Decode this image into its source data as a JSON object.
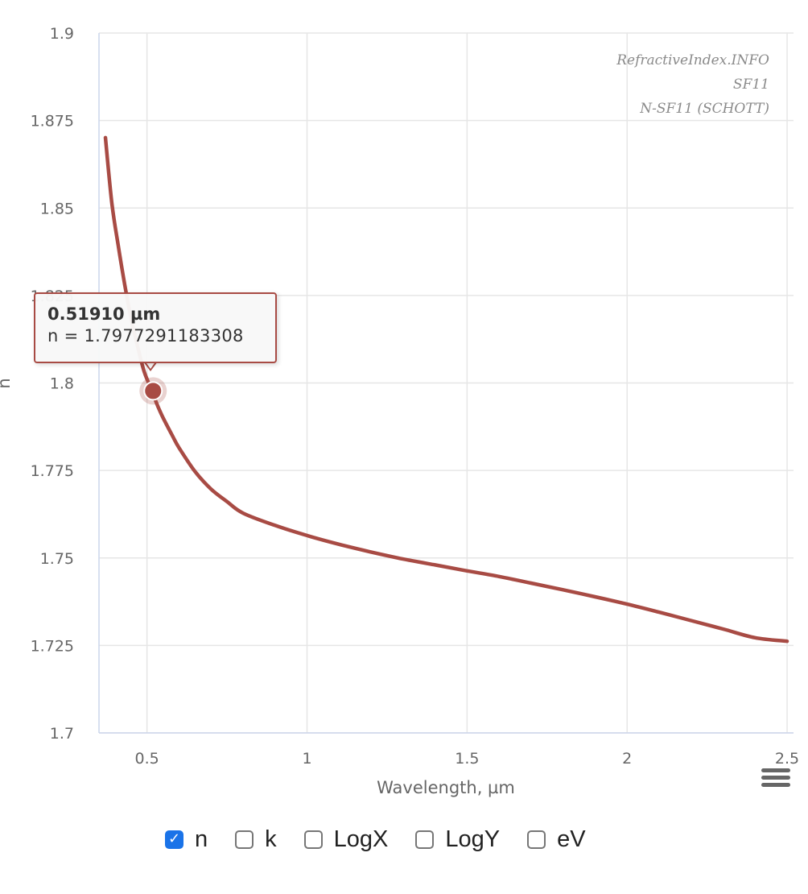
{
  "chart_data": {
    "type": "line",
    "credits": [
      "RefractiveIndex.INFO",
      "SF11",
      "N-SF11 (SCHOTT)"
    ],
    "xlabel": "Wavelength, µm",
    "ylabel": "n",
    "xlim": [
      0.35,
      2.52
    ],
    "ylim": [
      1.7,
      1.9
    ],
    "x_ticks": [
      0.5,
      1,
      1.5,
      2,
      2.5
    ],
    "x_tick_labels": [
      "0.5",
      "1",
      "1.5",
      "2",
      "2.5"
    ],
    "y_ticks": [
      1.7,
      1.725,
      1.75,
      1.775,
      1.8,
      1.825,
      1.85,
      1.875,
      1.9
    ],
    "y_tick_labels": [
      "1.7",
      "1.725",
      "1.75",
      "1.775",
      "1.8",
      "1.825",
      "1.85",
      "1.875",
      "1.9"
    ],
    "grid": true,
    "series": [
      {
        "name": "n",
        "color": "#a84b44",
        "x": [
          0.37,
          0.39,
          0.41,
          0.43,
          0.45,
          0.47,
          0.49,
          0.51,
          0.53,
          0.55,
          0.58,
          0.6,
          0.65,
          0.7,
          0.75,
          0.8,
          0.9,
          1.0,
          1.1,
          1.2,
          1.3,
          1.4,
          1.5,
          1.6,
          1.7,
          1.8,
          1.9,
          2.0,
          2.1,
          2.2,
          2.3,
          2.4,
          2.5
        ],
        "y": [
          1.8701,
          1.8515,
          1.8393,
          1.8283,
          1.8185,
          1.8107,
          1.8036,
          1.7989,
          1.7942,
          1.7901,
          1.7848,
          1.7815,
          1.7747,
          1.7697,
          1.7661,
          1.7628,
          1.7593,
          1.7564,
          1.7539,
          1.7517,
          1.7497,
          1.748,
          1.7463,
          1.7447,
          1.7428,
          1.7409,
          1.7389,
          1.7368,
          1.7345,
          1.7321,
          1.7297,
          1.7272,
          1.7262
        ]
      }
    ],
    "highlight": {
      "x": 0.5191,
      "y": 1.7977291183308
    }
  },
  "tooltip": {
    "title": "0.51910 µm",
    "value": "n = 1.7977291183308"
  },
  "controls": [
    {
      "label": "n",
      "checked": true
    },
    {
      "label": "k",
      "checked": false
    },
    {
      "label": "LogX",
      "checked": false
    },
    {
      "label": "LogY",
      "checked": false
    },
    {
      "label": "eV",
      "checked": false
    }
  ],
  "icons": {
    "menu": "hamburger-menu-icon",
    "check": "checkmark-icon"
  }
}
